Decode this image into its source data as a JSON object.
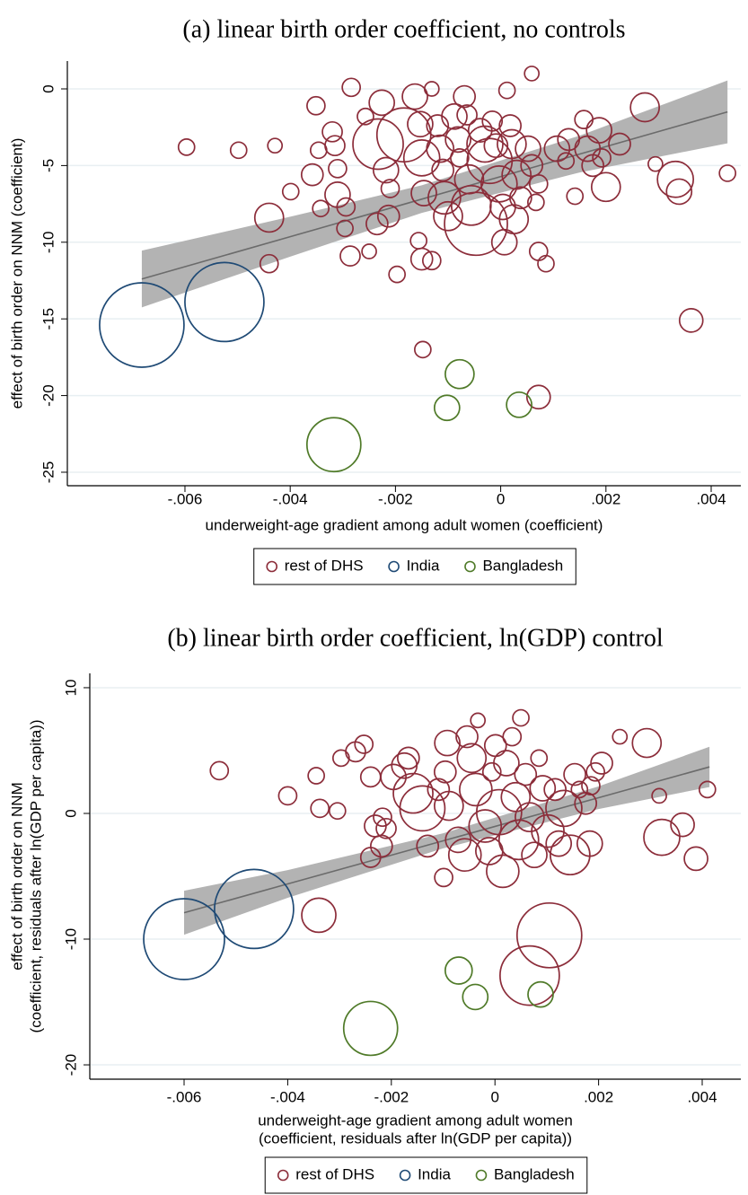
{
  "chart_data": [
    {
      "type": "scatter",
      "title": "(a) linear birth order coefficient, no controls",
      "x_label": [
        "underweight-age gradient among adult women (coefficient)"
      ],
      "y_label": [
        "effect of birth order on NNM (coefficient)"
      ],
      "xlim": [
        -0.008235,
        0.004563
      ],
      "ylim": [
        -25.88,
        1.815
      ],
      "xticks": [
        {
          "value": -0.006,
          "label": "-.006"
        },
        {
          "value": -0.004,
          "label": "-.004"
        },
        {
          "value": -0.002,
          "label": "-.002"
        },
        0,
        {
          "value": 0.002,
          "label": ".002"
        },
        {
          "value": 0.004,
          "label": ".004"
        }
      ],
      "yticks": [
        0,
        -5,
        -10,
        -15,
        -20,
        -25
      ],
      "grid": true,
      "fit": {
        "x": [
          -0.00682,
          -0.004,
          -0.0015,
          0.0015,
          0.00431
        ],
        "y": [
          -12.4,
          -9.64,
          -7.19,
          -4.25,
          -1.5
        ],
        "upper": [
          -10.55,
          -8.34,
          -6.29,
          -3.05,
          0.55
        ],
        "lower": [
          -14.25,
          -10.94,
          -8.09,
          -5.45,
          -3.55
        ]
      },
      "series": [
        {
          "name": "rest of DHS",
          "color": "#8c2d3a",
          "x": [
            -0.00597,
            -0.00498,
            -0.00429,
            -0.00284,
            -0.00351,
            -0.00399,
            -0.0044,
            -0.0044,
            -0.00358,
            -0.00346,
            -0.0032,
            -0.00315,
            -0.0031,
            -0.00342,
            -0.0031,
            -0.00294,
            -0.00286,
            -0.00296,
            -0.0025,
            -0.00235,
            -0.00257,
            -0.00226,
            -0.00233,
            -0.00218,
            -0.00213,
            -0.00197,
            -0.0021,
            -0.00184,
            -0.00163,
            -0.00153,
            -0.0015,
            -0.00146,
            -0.00156,
            -0.0015,
            -0.00131,
            -0.00148,
            -0.00131,
            -0.0012,
            -0.00115,
            -0.0011,
            -0.00107,
            -0.001,
            -0.00088,
            -0.00081,
            -0.00078,
            -0.00069,
            -0.00064,
            -0.0006,
            -0.00056,
            -0.00047,
            -0.00039,
            -0.0003,
            -0.00021,
            -0.00016,
            -9e-05,
            -3e-05,
            4e-05,
            7e-05,
            0.00012,
            0.00018,
            0.00021,
            0.0003,
            0.00025,
            0.00038,
            0.00052,
            0.00059,
            0.00072,
            0.00067,
            0.00107,
            0.00124,
            0.00129,
            0.00141,
            0.00158,
            0.00165,
            0.00175,
            0.00192,
            0.00187,
            0.002,
            0.00226,
            0.00274,
            0.00294,
            0.00332,
            0.00339,
            0.00431,
            0.00362,
            0.00072,
            0.00072,
            0.00086,
            0.00059
          ],
          "values": [
            -3.8,
            -4.0,
            -3.7,
            0.1,
            -1.1,
            -6.7,
            -8.4,
            -11.4,
            -5.6,
            -4.0,
            -2.8,
            -3.7,
            -5.2,
            -7.8,
            -6.9,
            -7.7,
            -10.9,
            -9.1,
            -10.6,
            -8.8,
            -1.8,
            -0.9,
            -3.6,
            -5.3,
            -8.3,
            -12.1,
            -6.5,
            -3.0,
            -0.5,
            -2.3,
            -4.5,
            -6.8,
            -9.9,
            -11.1,
            -11.2,
            -17.0,
            0,
            -2.4,
            -3.9,
            -5.3,
            -7.1,
            -8.3,
            -1.8,
            -3.3,
            -4.5,
            -0.5,
            -1.7,
            -5.9,
            -7.6,
            -8.8,
            -2.7,
            -3.6,
            -4.7,
            -2.1,
            -3.7,
            -6.2,
            -7.7,
            -10.0,
            -0.1,
            -2.4,
            -3.6,
            -5.6,
            -8.5,
            -7.1,
            -3.9,
            -5.0,
            -6.2,
            -7.4,
            -3.9,
            -4.7,
            -3.3,
            -7.0,
            -2.0,
            -3.9,
            -5.0,
            -4.5,
            -2.7,
            -6.4,
            -3.6,
            -1.2,
            -4.9,
            -5.9,
            -6.7,
            -5.5,
            -15.1,
            -20.1,
            -10.6,
            -11.4,
            1.0
          ],
          "sizes": [
            9,
            9,
            8,
            10,
            10,
            9,
            16,
            10,
            12,
            9,
            11,
            11,
            10,
            9,
            14,
            10,
            11,
            9,
            8,
            12,
            9,
            14,
            28,
            14,
            12,
            9,
            10,
            30,
            14,
            14,
            20,
            14,
            9,
            12,
            10,
            9,
            8,
            12,
            15,
            12,
            18,
            16,
            14,
            14,
            10,
            12,
            11,
            16,
            22,
            35,
            13,
            20,
            25,
            11,
            13,
            20,
            14,
            14,
            9,
            12,
            16,
            16,
            16,
            12,
            14,
            12,
            10,
            9,
            14,
            9,
            12,
            9,
            10,
            14,
            12,
            10,
            14,
            16,
            12,
            16,
            8,
            20,
            14,
            9,
            13,
            13,
            10,
            9,
            8
          ]
        },
        {
          "name": "India",
          "color": "#1f4a75",
          "x": [
            -0.00682,
            -0.00525
          ],
          "values": [
            -15.4,
            -13.9
          ],
          "sizes": [
            47,
            44
          ]
        },
        {
          "name": "Bangladesh",
          "color": "#4f7a28",
          "x": [
            -0.00317,
            -0.00078,
            -0.00102,
            0.00035
          ],
          "values": [
            -23.2,
            -18.6,
            -20.8,
            -20.6
          ],
          "sizes": [
            30,
            16,
            14,
            14
          ]
        }
      ]
    },
    {
      "type": "scatter",
      "title": "(b) linear birth order coefficient, ln(GDP) control",
      "x_label": [
        "underweight-age gradient among adult women",
        "(coefficient, residuals after ln(GDP per capita))"
      ],
      "y_label": [
        "effect of birth order on NNM",
        "(coefficient, residuals after ln(GDP per capita))"
      ],
      "xlim": [
        -0.00782,
        0.004745
      ],
      "ylim": [
        -21.14,
        11.14
      ],
      "xticks": [
        {
          "value": -0.006,
          "label": "-.006"
        },
        {
          "value": -0.004,
          "label": "-.004"
        },
        {
          "value": -0.002,
          "label": "-.002"
        },
        0,
        {
          "value": 0.002,
          "label": ".002"
        },
        {
          "value": 0.004,
          "label": ".004"
        }
      ],
      "yticks": [
        10,
        0,
        -10,
        -20
      ],
      "grid": true,
      "fit": {
        "x": [
          -0.006,
          -0.004,
          -0.001,
          0.002,
          0.00414
        ],
        "y": [
          -7.9,
          -5.61,
          -2.18,
          1.25,
          3.7
        ],
        "upper": [
          -6.15,
          -4.51,
          -1.58,
          2.15,
          5.3
        ],
        "lower": [
          -9.65,
          -6.71,
          -2.78,
          0.35,
          2.1
        ]
      },
      "series": [
        {
          "name": "rest of DHS",
          "color": "#8c2d3a",
          "x": [
            -0.00532,
            -0.004,
            -0.00345,
            -0.00338,
            -0.00304,
            -0.00297,
            -0.00269,
            -0.00253,
            -0.0034,
            -0.0024,
            -0.0024,
            -0.00231,
            -0.00219,
            -0.00217,
            -0.0021,
            -0.00196,
            -0.00175,
            -0.00167,
            -0.00158,
            -0.0014,
            -0.0013,
            -0.00109,
            -0.00096,
            -0.00092,
            -0.00089,
            -0.00099,
            -0.00071,
            -0.00058,
            -0.00054,
            -0.00045,
            -0.00037,
            -0.00033,
            -0.00019,
            -0.00011,
            -6e-05,
            1e-05,
            8e-05,
            0.00015,
            0.00022,
            0.00033,
            0.0004,
            0.00046,
            0.0005,
            0.00059,
            0.00067,
            0.00076,
            0.00085,
            0.00092,
            0.00102,
            0.00105,
            0.00067,
            0.00116,
            0.00123,
            0.00133,
            0.00145,
            0.00154,
            0.00163,
            0.00175,
            0.00183,
            0.00185,
            0.00194,
            0.00206,
            0.00241,
            0.00293,
            0.00317,
            0.00322,
            0.00362,
            0.00388,
            0.0041
          ],
          "values": [
            3.4,
            1.4,
            3.0,
            0.4,
            0.2,
            4.4,
            4.9,
            5.5,
            -8.1,
            -3.5,
            2.9,
            -1.0,
            -2.6,
            -0.3,
            -1.2,
            2.9,
            3.8,
            4.4,
            1.6,
            0.4,
            -2.6,
            1.9,
            3.3,
            5.6,
            0.6,
            -5.1,
            -2.1,
            -3.3,
            6.1,
            4.4,
            1.9,
            7.4,
            -1.0,
            -3.0,
            3.3,
            5.4,
            0.1,
            -4.6,
            4.0,
            6.1,
            1.3,
            -2.1,
            7.6,
            3.1,
            -0.3,
            -3.3,
            4.4,
            2.0,
            -1.4,
            -9.7,
            -12.9,
            1.9,
            -2.4,
            0.4,
            -3.3,
            3.1,
            1.9,
            0.8,
            -2.4,
            2.2,
            3.3,
            4.0,
            6.1,
            5.6,
            1.4,
            -1.9,
            -0.9,
            -3.6,
            1.9
          ],
          "sizes": [
            10,
            10,
            9,
            10,
            9,
            9,
            11,
            10,
            19,
            11,
            11,
            12,
            12,
            10,
            11,
            14,
            14,
            12,
            22,
            25,
            12,
            12,
            12,
            14,
            16,
            10,
            14,
            18,
            12,
            16,
            18,
            8,
            18,
            15,
            10,
            12,
            25,
            18,
            14,
            10,
            16,
            22,
            9,
            12,
            16,
            14,
            9,
            14,
            18,
            36,
            33,
            12,
            14,
            20,
            22,
            12,
            9,
            12,
            14,
            10,
            10,
            12,
            8,
            16,
            8,
            20,
            13,
            13,
            9
          ]
        },
        {
          "name": "India",
          "color": "#1f4a75",
          "x": [
            -0.006,
            -0.00465
          ],
          "values": [
            -10.0,
            -7.6
          ],
          "sizes": [
            45,
            44
          ]
        },
        {
          "name": "Bangladesh",
          "color": "#4f7a28",
          "x": [
            -0.0024,
            -0.0007,
            -0.00038,
            0.00088
          ],
          "values": [
            -17.1,
            -12.5,
            -14.6,
            -14.4
          ],
          "sizes": [
            30,
            15,
            14,
            14
          ]
        }
      ]
    }
  ]
}
